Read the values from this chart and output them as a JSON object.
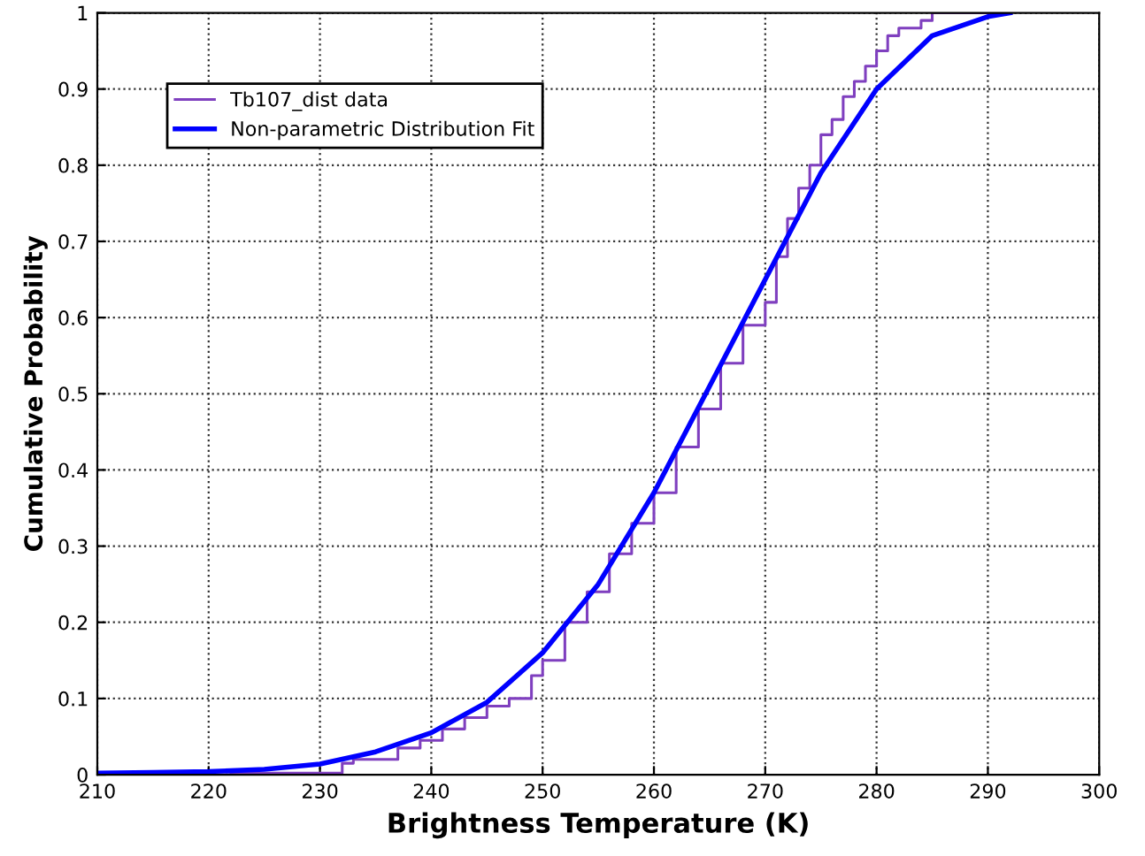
{
  "chart_data": {
    "type": "step",
    "xlabel": "Brightness Temperature (K)",
    "ylabel": "Cumulative Probability",
    "xlim": [
      210,
      300
    ],
    "xticks": [
      210,
      220,
      230,
      240,
      250,
      260,
      270,
      280,
      290,
      300
    ],
    "ylim": [
      0,
      1
    ],
    "yticks": [
      0,
      0.1,
      0.2,
      0.3,
      0.4,
      0.5,
      0.6,
      0.7,
      0.8,
      0.9,
      1
    ],
    "grid": true,
    "legend": "top left",
    "series": [
      {
        "name": "Tb107_dist data",
        "color": "#7f3fbf",
        "x": [
          210,
          222,
          232,
          233,
          237,
          239,
          241,
          243,
          245,
          247,
          249,
          250,
          252,
          254,
          256,
          258,
          260,
          262,
          264,
          266,
          268,
          270,
          271,
          272,
          273,
          274,
          275,
          276,
          277,
          278,
          279,
          280,
          281,
          282,
          284,
          285,
          292
        ],
        "values": [
          0,
          0.002,
          0.015,
          0.02,
          0.035,
          0.045,
          0.06,
          0.075,
          0.09,
          0.1,
          0.13,
          0.15,
          0.2,
          0.24,
          0.29,
          0.33,
          0.37,
          0.43,
          0.48,
          0.54,
          0.59,
          0.62,
          0.68,
          0.73,
          0.77,
          0.8,
          0.84,
          0.86,
          0.89,
          0.91,
          0.93,
          0.95,
          0.97,
          0.98,
          0.99,
          1,
          1
        ]
      },
      {
        "name": "Non-parametric Distribution Fit",
        "type": "line",
        "color": "#0000ff",
        "x": [
          210,
          215,
          220,
          225,
          230,
          235,
          240,
          245,
          250,
          255,
          260,
          265,
          270,
          275,
          280,
          285,
          290,
          292
        ],
        "values": [
          0.002,
          0.003,
          0.004,
          0.007,
          0.014,
          0.03,
          0.055,
          0.095,
          0.16,
          0.25,
          0.37,
          0.51,
          0.65,
          0.79,
          0.9,
          0.97,
          0.995,
          1
        ]
      }
    ]
  }
}
